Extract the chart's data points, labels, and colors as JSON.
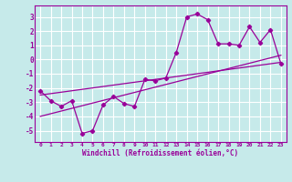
{
  "xlabel": "Windchill (Refroidissement éolien,°C)",
  "xlim": [
    -0.5,
    23.5
  ],
  "ylim": [
    -5.8,
    3.8
  ],
  "yticks": [
    -5,
    -4,
    -3,
    -2,
    -1,
    0,
    1,
    2,
    3
  ],
  "xticks": [
    0,
    1,
    2,
    3,
    4,
    5,
    6,
    7,
    8,
    9,
    10,
    11,
    12,
    13,
    14,
    15,
    16,
    17,
    18,
    19,
    20,
    21,
    22,
    23
  ],
  "bg_color": "#c6eaea",
  "line_color": "#990099",
  "grid_color": "#ffffff",
  "series1_x": [
    0,
    1,
    2,
    3,
    4,
    5,
    6,
    7,
    8,
    9,
    10,
    11,
    12,
    13,
    14,
    15,
    16,
    17,
    18,
    19,
    20,
    21,
    22,
    23
  ],
  "series1_y": [
    -2.2,
    -2.9,
    -3.3,
    -2.9,
    -5.2,
    -5.0,
    -3.2,
    -2.6,
    -3.1,
    -3.3,
    -1.4,
    -1.5,
    -1.3,
    0.5,
    3.0,
    3.2,
    2.8,
    1.1,
    1.1,
    1.0,
    2.3,
    1.2,
    2.1,
    -0.3
  ],
  "trend1_x": [
    0,
    23
  ],
  "trend1_y": [
    -2.5,
    -0.2
  ],
  "trend2_x": [
    0,
    23
  ],
  "trend2_y": [
    -4.0,
    0.3
  ]
}
